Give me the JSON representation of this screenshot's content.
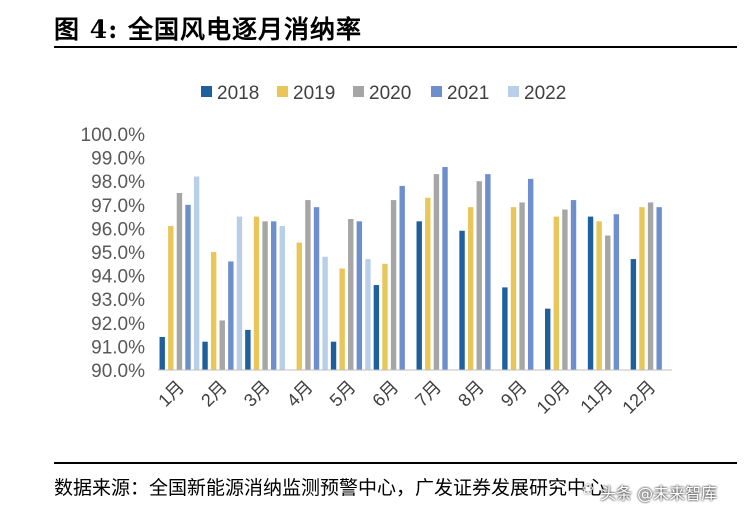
{
  "figure": {
    "title": "图 4: 全国风电逐月消纳率",
    "source": "数据来源：全国新能源消纳监测预警中心，广发证券发展研究中心",
    "watermark": "头条 @未来智库"
  },
  "colors": {
    "2018": "#1f5f9e",
    "2019": "#e8c65a",
    "2020": "#a6a6a6",
    "2021": "#6e8fce",
    "2022": "#b9cfe9"
  },
  "chart_data": {
    "type": "bar",
    "categories": [
      "1月",
      "2月",
      "3月",
      "4月",
      "5月",
      "6月",
      "7月",
      "8月",
      "9月",
      "10月",
      "11月",
      "12月"
    ],
    "series": [
      {
        "name": "2018",
        "values": [
          91.4,
          91.2,
          91.7,
          null,
          91.2,
          93.6,
          96.3,
          95.9,
          93.5,
          92.6,
          96.5,
          94.7
        ]
      },
      {
        "name": "2019",
        "values": [
          96.1,
          95.0,
          96.5,
          95.4,
          94.3,
          94.5,
          97.3,
          96.9,
          96.9,
          96.5,
          96.3,
          96.9
        ]
      },
      {
        "name": "2020",
        "values": [
          97.5,
          92.1,
          96.3,
          97.2,
          96.4,
          97.2,
          98.3,
          98.0,
          97.1,
          96.8,
          95.7,
          97.1
        ]
      },
      {
        "name": "2021",
        "values": [
          97.0,
          94.6,
          96.3,
          96.9,
          96.3,
          97.8,
          98.6,
          98.3,
          98.1,
          97.2,
          96.6,
          96.9
        ]
      },
      {
        "name": "2022",
        "values": [
          98.2,
          96.5,
          96.1,
          94.8,
          94.7,
          null,
          null,
          null,
          null,
          null,
          null,
          null
        ]
      }
    ],
    "ylim": [
      90.0,
      100.0
    ],
    "yticks": [
      "90.0%",
      "91.0%",
      "92.0%",
      "93.0%",
      "94.0%",
      "95.0%",
      "96.0%",
      "97.0%",
      "98.0%",
      "99.0%",
      "100.0%"
    ],
    "legend_position": "top",
    "grid": false
  }
}
